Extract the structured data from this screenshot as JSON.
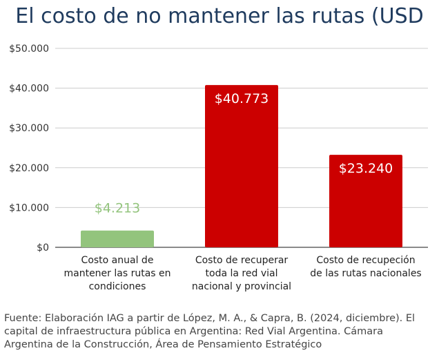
{
  "title": "El costo de no mantener las rutas (USD",
  "chart_data": {
    "type": "bar",
    "title": "El costo de no mantener las rutas (USD",
    "xlabel": "",
    "ylabel": "",
    "ylim": [
      0,
      50000
    ],
    "y_ticks": [
      {
        "value": 0,
        "label": "$0"
      },
      {
        "value": 10000,
        "label": "$10.000"
      },
      {
        "value": 20000,
        "label": "$20.000"
      },
      {
        "value": 30000,
        "label": "$30.000"
      },
      {
        "value": 40000,
        "label": "$40.000"
      },
      {
        "value": 50000,
        "label": "$50.000"
      }
    ],
    "grid": true,
    "bars": [
      {
        "category": [
          "Costo anual de",
          "mantener las rutas en",
          "condiciones"
        ],
        "value": 4213,
        "label": "$4.213",
        "color": "#93c47d",
        "label_color": "#93c47d",
        "label_position": "above"
      },
      {
        "category": [
          "Costo de recuperar",
          "toda la red vial",
          "nacional y provincial"
        ],
        "value": 40773,
        "label": "$40.773",
        "color": "#cc0000",
        "label_color": "#ffffff",
        "label_position": "inside"
      },
      {
        "category": [
          "Costo de recupeción",
          "de las rutas nacionales"
        ],
        "value": 23240,
        "label": "$23.240",
        "color": "#cc0000",
        "label_color": "#ffffff",
        "label_position": "inside"
      }
    ]
  },
  "source_text": "Fuente: Elaboración IAG a partir de López, M. A., & Capra, B. (2024, diciembre). El capital de infraestructura pública en Argentina: Red Vial Argentina. Cámara Argentina de la Construcción, Área de Pensamiento Estratégico"
}
